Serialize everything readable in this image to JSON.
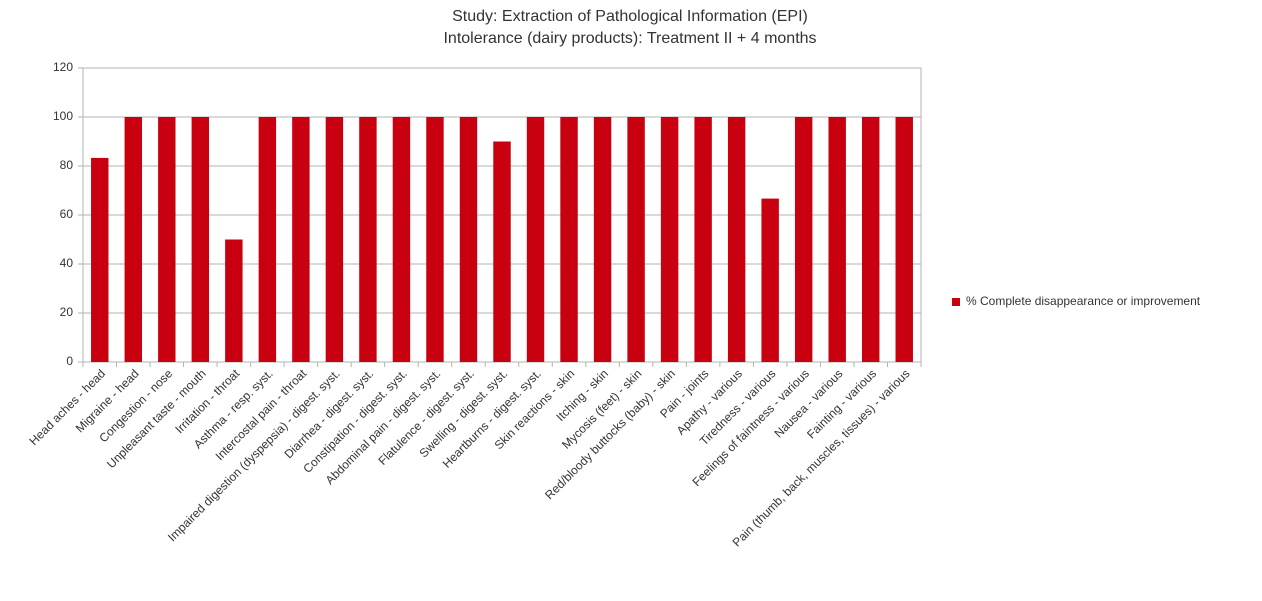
{
  "chart_data": {
    "type": "bar",
    "title": "Study: Extraction of Pathological Information (EPI)",
    "subtitle": "Intolerance (dairy products): Treatment II + 4 months",
    "categories": [
      "Head aches - head",
      "Migraine - head",
      "Congestion - nose",
      "Unpleasant taste - mouth",
      "Irritation - throat",
      "Asthma - resp. syst.",
      "Intercostal pain - throat",
      "Impaired digestion (dyspepsia) - digest. syst.",
      "Diarrhea - digest. syst.",
      "Constipation - digest. syst.",
      "Abdominal pain - digest. syst.",
      "Flatulence - digest. syst.",
      "Swelling - digest. syst.",
      "Heartburns - digest. syst.",
      "Skin reactions - skin",
      "Itching - skin",
      "Mycosis (feet) - skin",
      "Red/bloody buttocks (baby) - skin",
      "Pain - joints",
      "Apathy - various",
      "Tiredness - various",
      "Feelings of faintness - various",
      "Nausea - various",
      "Fainting - various",
      "Pain (thumb, back, muscles, tissues) - various"
    ],
    "series": [
      {
        "name": "% Complete disappearance or improvement",
        "color": "#c9000f",
        "values": [
          83.3,
          100,
          100,
          100,
          50,
          100,
          100,
          100,
          100,
          100,
          100,
          100,
          90,
          100,
          100,
          100,
          100,
          100,
          100,
          100,
          66.7,
          100,
          100,
          100,
          100
        ]
      }
    ],
    "ylim": [
      0,
      120
    ],
    "yticks": [
      0,
      20,
      40,
      60,
      80,
      100,
      120
    ],
    "grid": true,
    "legend": "right"
  }
}
